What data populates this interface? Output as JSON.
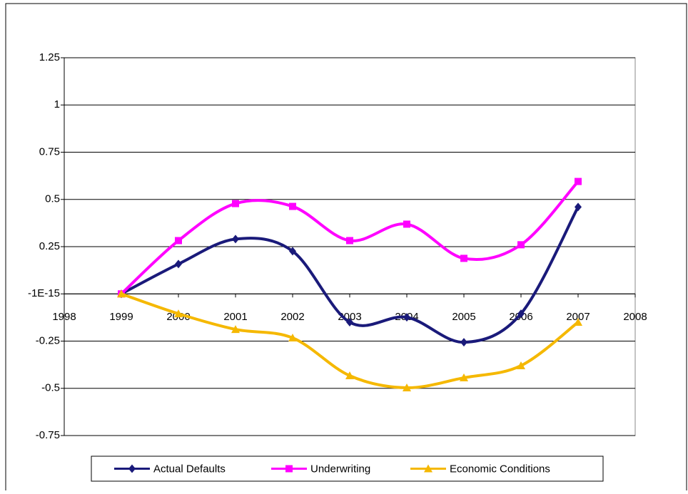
{
  "chart_data": {
    "type": "line",
    "x": [
      1999,
      2000,
      2001,
      2002,
      2003,
      2004,
      2005,
      2006,
      2007
    ],
    "series": [
      {
        "name": "Actual Defaults",
        "color": "#1a1a7a",
        "marker": "diamond",
        "values": [
          0,
          0.158,
          0.29,
          0.226,
          -0.15,
          -0.124,
          -0.256,
          -0.105,
          0.46
        ]
      },
      {
        "name": "Underwriting",
        "color": "#ff00ff",
        "marker": "square",
        "values": [
          0,
          0.282,
          0.478,
          0.463,
          0.282,
          0.369,
          0.188,
          0.26,
          0.595
        ]
      },
      {
        "name": "Economic Conditions",
        "color": "#f5b800",
        "marker": "triangle",
        "values": [
          0,
          -0.105,
          -0.188,
          -0.233,
          -0.433,
          -0.497,
          -0.444,
          -0.38,
          -0.15
        ]
      }
    ],
    "xlim": [
      1998,
      2008
    ],
    "xticks": [
      1998,
      1999,
      2000,
      2001,
      2002,
      2003,
      2004,
      2005,
      2006,
      2007,
      2008
    ],
    "ylim": [
      -0.75,
      1.25
    ],
    "yticks": [
      -0.75,
      -0.5,
      -0.25,
      {
        "value": -1e-15,
        "label": "-1E-15"
      },
      0.25,
      0.5,
      0.75,
      1,
      1.25
    ],
    "grid": true,
    "legend": "bottom"
  }
}
